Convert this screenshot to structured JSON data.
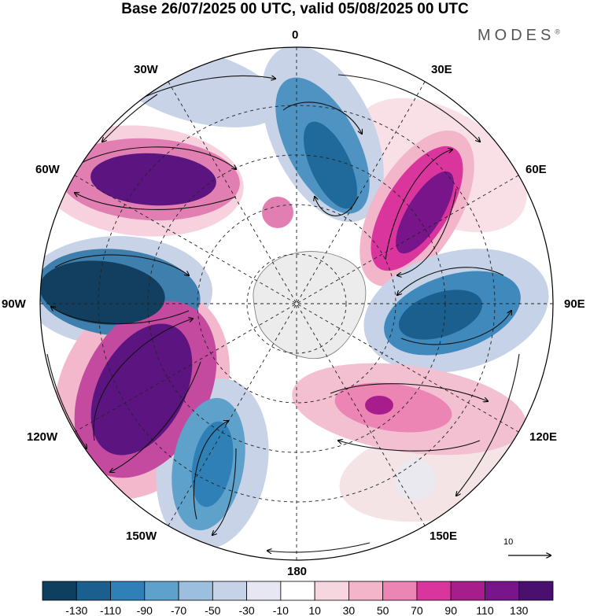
{
  "title": "Base 26/07/2025 00 UTC, valid 05/08/2025 00 UTC",
  "brand": {
    "name": "MODES",
    "mark": "®"
  },
  "longitude_labels": {
    "lon_0": "0",
    "lon_30e": "30E",
    "lon_60e": "60E",
    "lon_90e": "90E",
    "lon_120e": "120E",
    "lon_150e": "150E",
    "lon_180": "180",
    "lon_150w": "150W",
    "lon_120w": "120W",
    "lon_90w": "90W",
    "lon_60w": "60W",
    "lon_30w": "30W"
  },
  "reference_vector": {
    "label": "10"
  },
  "colorbar": {
    "colors": [
      "#0f3f5f",
      "#1b5f8e",
      "#2f80b6",
      "#5ea1cb",
      "#9cbfde",
      "#c6d2e7",
      "#e6e7f2",
      "#ffffff",
      "#f6d6df",
      "#f3b5ca",
      "#ec84b4",
      "#d9359d",
      "#a81d8c",
      "#79158a",
      "#4a1070"
    ],
    "tick_labels": [
      "-130",
      "-110",
      "-90",
      "-70",
      "-50",
      "-30",
      "-10",
      "10",
      "30",
      "50",
      "70",
      "90",
      "110",
      "130"
    ]
  },
  "colors": {
    "antarctica": "#ececec",
    "neg_dark": "#1a4e73",
    "pos_dark": "#5c1580"
  }
}
